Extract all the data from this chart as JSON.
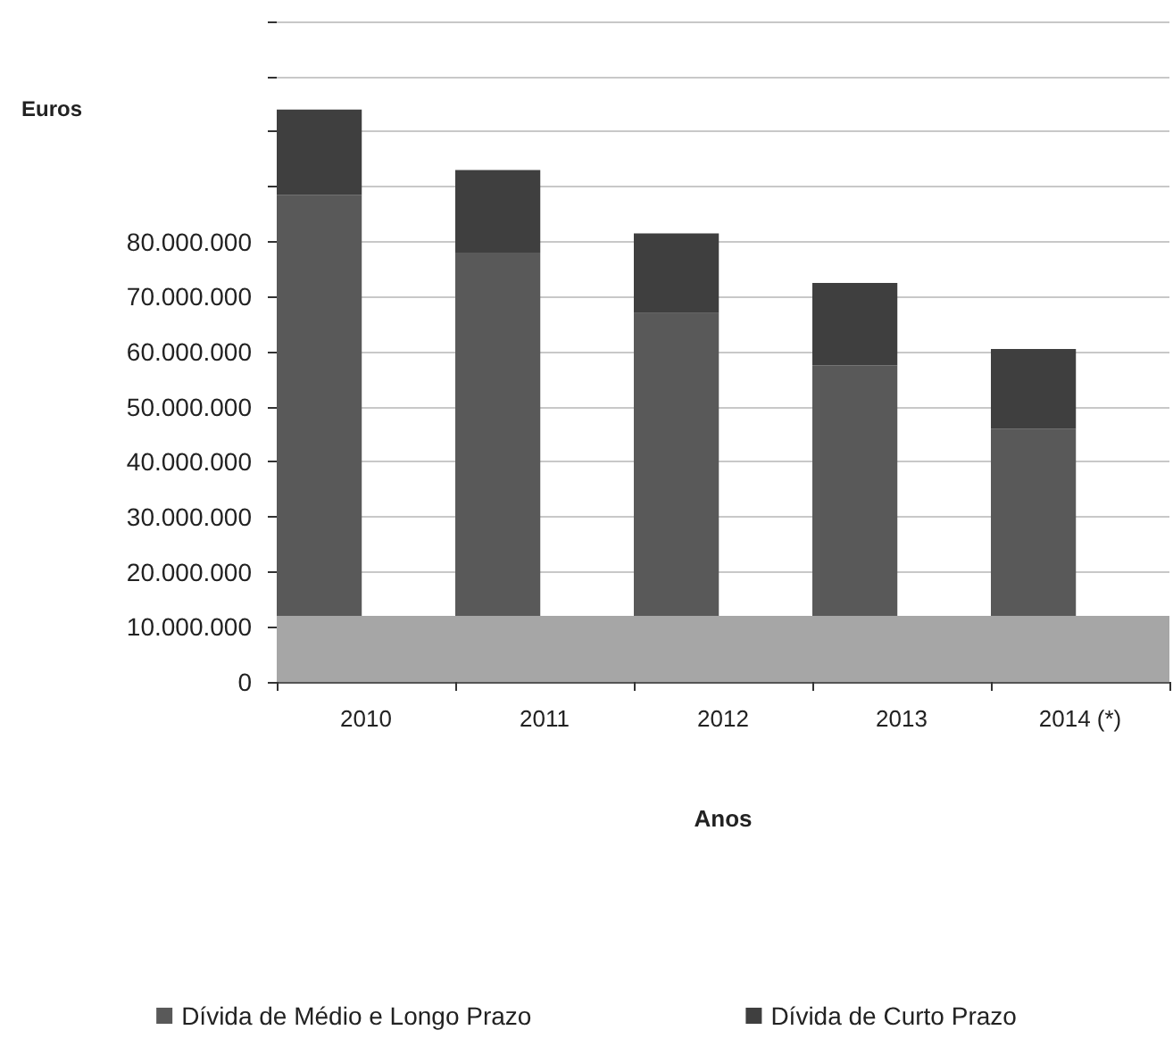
{
  "chart_data": {
    "type": "bar",
    "stacked": true,
    "xlabel": "Anos",
    "ylabel": "Euros",
    "categories": [
      "2010",
      "2011",
      "2012",
      "2013",
      "2014 (*)"
    ],
    "series": [
      {
        "name": "Dívida de Médio e Longo Prazo",
        "color": "#595959",
        "base": [
          12000000,
          12000000,
          12000000,
          12000000,
          12000000
        ],
        "values": [
          76500000,
          66000000,
          55000000,
          45500000,
          34000000
        ]
      },
      {
        "name": "Dívida de Curto Prazo",
        "color": "#3f3f3f",
        "values": [
          15500000,
          15000000,
          14500000,
          15000000,
          14500000
        ]
      }
    ],
    "ylim": [
      0,
      120000000
    ],
    "yticks": [
      {
        "value": 0,
        "label": "0"
      },
      {
        "value": 10000000,
        "label": "10.000.000"
      },
      {
        "value": 20000000,
        "label": "20.000.000"
      },
      {
        "value": 30000000,
        "label": "30.000.000"
      },
      {
        "value": 40000000,
        "label": "40.000.000"
      },
      {
        "value": 50000000,
        "label": "50.000.000"
      },
      {
        "value": 60000000,
        "label": "60.000.000"
      },
      {
        "value": 70000000,
        "label": "70.000.000"
      },
      {
        "value": 80000000,
        "label": "80.000.000"
      },
      {
        "value": 90000000,
        "label": null
      },
      {
        "value": 100000000,
        "label": null
      },
      {
        "value": 110000000,
        "label": null
      },
      {
        "value": 120000000,
        "label": null
      }
    ],
    "bands": [
      {
        "axis": "y",
        "from": 0,
        "to": 12000000,
        "color": "#a6a6a6"
      }
    ],
    "grid": "y",
    "legend": "bottom"
  }
}
